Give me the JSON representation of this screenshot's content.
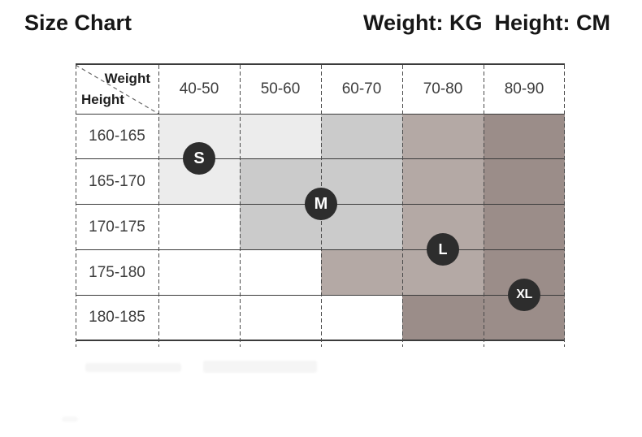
{
  "header": {
    "title": "Size Chart",
    "units": "Weight: KG  Height: CM"
  },
  "table": {
    "corner": {
      "weight": "Weight",
      "height": "Height"
    },
    "weight_columns": [
      "40-50",
      "50-60",
      "60-70",
      "70-80",
      "80-90"
    ],
    "height_rows": [
      "160-165",
      "165-170",
      "170-175",
      "175-180",
      "180-185"
    ],
    "shading": [
      [
        "l1",
        "l1",
        "l2",
        "l3",
        "l4"
      ],
      [
        "l1",
        "l2",
        "l2",
        "l3",
        "l4"
      ],
      [
        "w",
        "l2",
        "l2",
        "l3",
        "l4"
      ],
      [
        "w",
        "w",
        "l3",
        "l3",
        "l4"
      ],
      [
        "w",
        "w",
        "w",
        "l4",
        "l4"
      ]
    ],
    "sizes": [
      {
        "label": "S",
        "weight_kg": "40-50",
        "height_cm": "160-170"
      },
      {
        "label": "M",
        "weight_kg": "50-70",
        "height_cm": "165-175"
      },
      {
        "label": "L",
        "weight_kg": "70-80",
        "height_cm": "170-180"
      },
      {
        "label": "XL",
        "weight_kg": "80-90",
        "height_cm": "175-185"
      }
    ]
  },
  "palette": {
    "w": "#ffffff",
    "l1": "#ececec",
    "l2": "#cbcbcb",
    "l3": "#b4a9a5",
    "l4": "#9b8d89",
    "badge_bg": "#2d2d2d",
    "badge_text": "#ffffff"
  },
  "chart_data": {
    "type": "table",
    "title": "Size Chart",
    "units": {
      "weight": "KG",
      "height": "CM"
    },
    "columns_weight_kg": [
      "40-50",
      "50-60",
      "60-70",
      "70-80",
      "80-90"
    ],
    "rows_height_cm": [
      "160-165",
      "165-170",
      "170-175",
      "175-180",
      "180-185"
    ],
    "size_mapping": [
      {
        "size": "S",
        "weight_kg": "40-50",
        "height_cm": "160-170"
      },
      {
        "size": "M",
        "weight_kg": "50-70",
        "height_cm": "165-175"
      },
      {
        "size": "L",
        "weight_kg": "70-80",
        "height_cm": "170-180"
      },
      {
        "size": "XL",
        "weight_kg": "80-90",
        "height_cm": "175-185"
      }
    ],
    "shading_levels": {
      "legend": "cells shaded darker toward higher weight; w=white none, l1=lightest, l4=darkest",
      "grid": [
        [
          "l1",
          "l1",
          "l2",
          "l3",
          "l4"
        ],
        [
          "l1",
          "l2",
          "l2",
          "l3",
          "l4"
        ],
        [
          "w",
          "l2",
          "l2",
          "l3",
          "l4"
        ],
        [
          "w",
          "w",
          "l3",
          "l3",
          "l4"
        ],
        [
          "w",
          "w",
          "w",
          "l4",
          "l4"
        ]
      ]
    }
  }
}
